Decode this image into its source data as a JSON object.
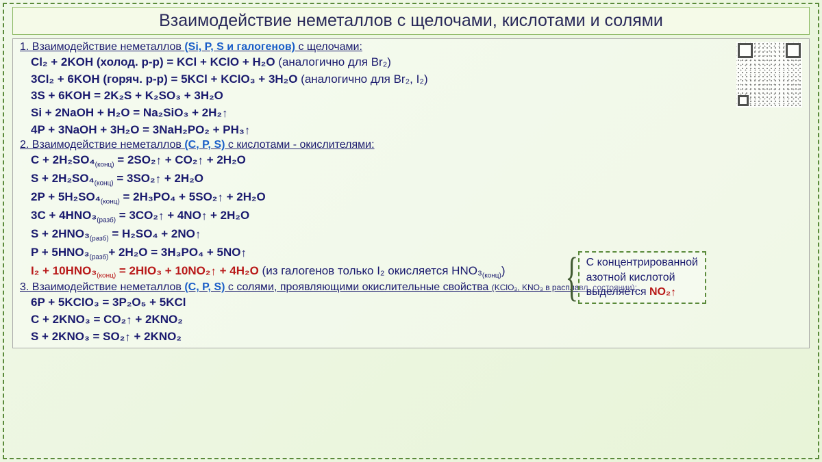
{
  "title": "Взаимодействие неметаллов с щелочами, кислотами и солями",
  "sections": {
    "s1": {
      "prefix": "1. Взаимодействие неметаллов ",
      "emph": "(Si, P, S и галогенов)",
      "suffix": "  с щелочами:"
    },
    "s2": {
      "prefix": "2. Взаимодействие неметаллов ",
      "emph": "(С, Р, S)",
      "suffix": "  с кислотами - окислителями:"
    },
    "s3": {
      "prefix": "3. Взаимодействие неметаллов ",
      "emph": "(С, Р, S)",
      "suffix": "  с солями, проявляющими окислительные свойства ",
      "tail": "(KClO₃, KNO₃ в расплавл. состоянии):"
    }
  },
  "eq": {
    "e1a": "Cl₂ + 2KOH (холод. р-р) = KCl + KClO + H₂O ",
    "e1a_note": "(аналогично для Br₂)",
    "e1b": "3Cl₂ + 6KOH (горяч. р-р) = 5KCl + KClO₃ + 3H₂O ",
    "e1b_note": "(аналогично для Br₂, I₂)",
    "e1c": "3S + 6KOH = 2K₂S + K₂SO₃ + 3H₂O",
    "e1d": "Si + 2NaOH + H₂O = Na₂SiO₃ + 2H₂↑",
    "e1e": "4P + 3NaOH + 3H₂O = 3NaH₂PO₂ + PH₃↑",
    "e2a": "C + 2H₂SO₄(конц) = 2SO₂↑ + CO₂↑  + 2H₂O",
    "e2b": "S + 2H₂SO₄(конц) = 3SO₂↑ + 2H₂O",
    "e2c": "2P + 5H₂SO₄(конц) = 2H₃PO₄ + 5SO₂↑ + 2H₂O",
    "e2d": "3C + 4HNO₃(разб) = 3CO₂↑ + 4NO↑  + 2H₂O",
    "e2e": "S + 2HNO₃(разб) = H₂SO₄ + 2NO↑",
    "e2f": "P + 5HNO₃(разб)+ 2H₂O = 3H₃PO₄ + 5NO↑",
    "e2g": "I₂ + 10HNO₃(конц) = 2HIO₃ + 10NO₂↑ + 4H₂O ",
    "e2g_note": "(из галогенов только I₂ окисляется HNO₃(конц))",
    "e3a": "6P + 5KClO₃ = 3P₂O₅ + 5KCl",
    "e3b": "C + 2KNO₃ = CO₂↑ + 2KNO₂",
    "e3c": "S + 2KNO₃ = SO₂↑ + 2KNO₂"
  },
  "callout": {
    "line1": "С концентрированной",
    "line2": "азотной кислотой",
    "line3a": "выделяется ",
    "line3b": "NO₂↑"
  },
  "colors": {
    "text_primary": "#1a1a6e",
    "emph_blue": "#1a5ec8",
    "red": "#b81818",
    "border_green": "#5a8a3a",
    "title_bg": "#f5fae8"
  },
  "fontsizes": {
    "title": 25,
    "section": 16,
    "equation": 17,
    "callout": 16,
    "small_tail": 12
  }
}
